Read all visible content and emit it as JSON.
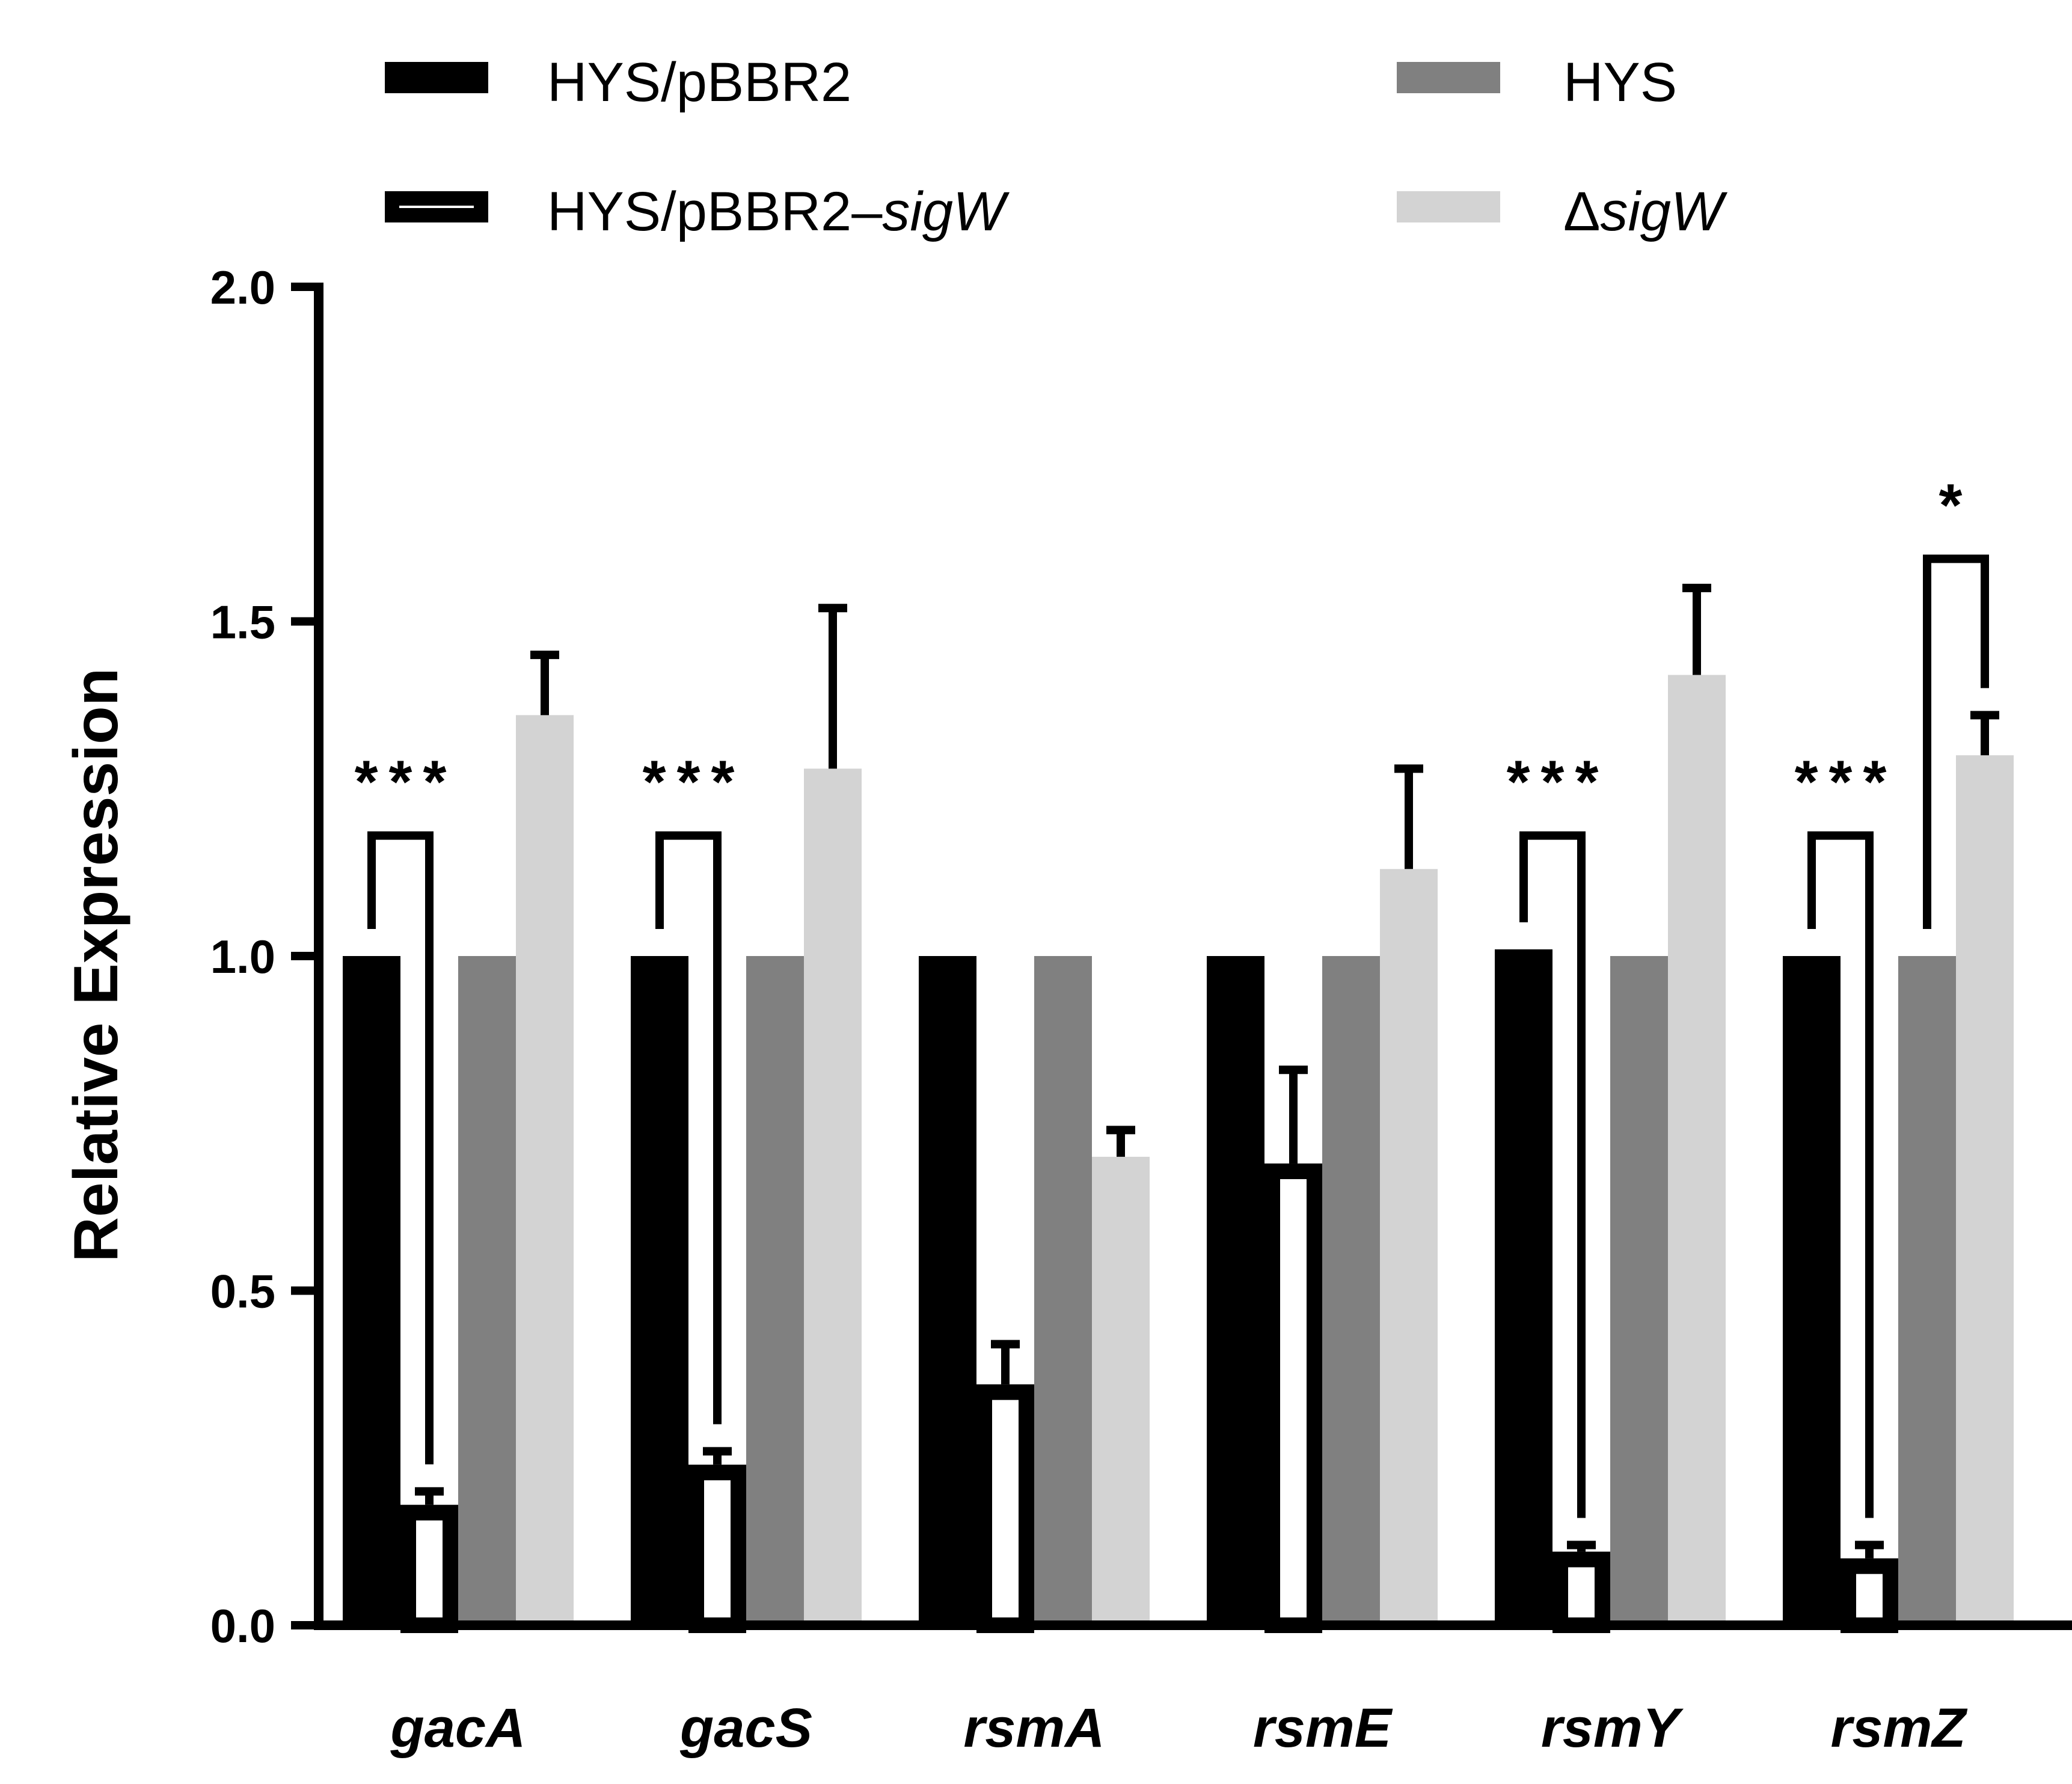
{
  "chart_data": {
    "type": "bar",
    "title": "",
    "xlabel": "",
    "ylabel": "Relative Expression",
    "ylim": [
      0,
      2.0
    ],
    "yticks": [
      "0.0",
      "0.5",
      "1.0",
      "1.5",
      "2.0"
    ],
    "grid": false,
    "legend_position": "top",
    "categories": [
      "gacA",
      "gacS",
      "rsmA",
      "rsmE",
      "rsmY",
      "rsmZ"
    ],
    "series": [
      {
        "name": "HYS/pBBR2",
        "legend_prefix": "HYS/pBBR2",
        "legend_italic": "",
        "fill": "#000000",
        "stroke": "#000000",
        "values": [
          1.0,
          1.0,
          1.0,
          1.0,
          1.01,
          1.0
        ],
        "errors": [
          0.0,
          0.0,
          0.0,
          0.0,
          0.0,
          0.0
        ]
      },
      {
        "name": "HYS/pBBR2–sigW",
        "legend_prefix": "HYS/pBBR2–",
        "legend_italic": "sigW",
        "fill": "#ffffff",
        "stroke": "#000000",
        "values": [
          0.18,
          0.24,
          0.36,
          0.69,
          0.11,
          0.1
        ],
        "errors": [
          0.02,
          0.02,
          0.06,
          0.14,
          0.01,
          0.02
        ]
      },
      {
        "name": "HYS",
        "legend_prefix": "HYS",
        "legend_italic": "",
        "fill": "#808080",
        "stroke": "#808080",
        "values": [
          1.0,
          1.0,
          1.0,
          1.0,
          1.0,
          1.0
        ],
        "errors": [
          0.0,
          0.0,
          0.0,
          0.0,
          0.0,
          0.0
        ]
      },
      {
        "name": "ΔsigW",
        "legend_prefix": "Δ",
        "legend_italic": "sigW",
        "fill": "#d3d3d3",
        "stroke": "#d3d3d3",
        "values": [
          1.36,
          1.28,
          0.7,
          1.13,
          1.42,
          1.3
        ],
        "errors": [
          0.09,
          0.24,
          0.04,
          0.15,
          0.13,
          0.06
        ]
      }
    ],
    "significance": [
      {
        "category": "gacA",
        "between": [
          "HYS/pBBR2",
          "HYS/pBBR2–sigW"
        ],
        "label": "***"
      },
      {
        "category": "gacS",
        "between": [
          "HYS/pBBR2",
          "HYS/pBBR2–sigW"
        ],
        "label": "***"
      },
      {
        "category": "rsmY",
        "between": [
          "HYS/pBBR2",
          "HYS/pBBR2–sigW"
        ],
        "label": "***"
      },
      {
        "category": "rsmZ",
        "between": [
          "HYS/pBBR2",
          "HYS/pBBR2–sigW"
        ],
        "label": "***"
      },
      {
        "category": "rsmZ",
        "between": [
          "HYS",
          "ΔsigW"
        ],
        "label": "*"
      }
    ]
  }
}
